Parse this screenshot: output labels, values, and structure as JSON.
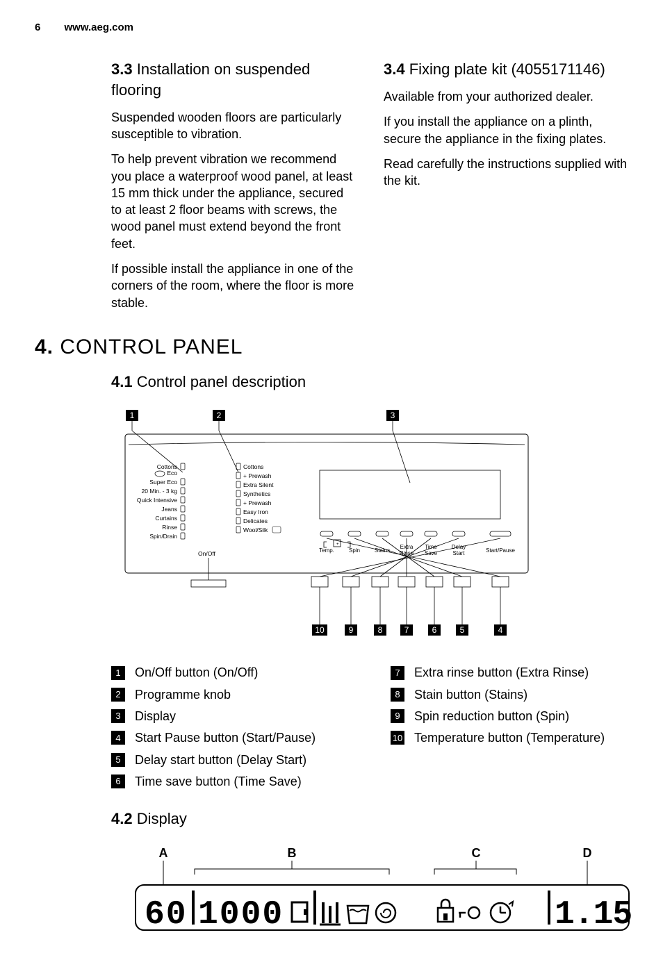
{
  "header": {
    "page_num": "6",
    "site": "www.aeg.com"
  },
  "s33": {
    "heading_num": "3.3",
    "heading_text": "Installation on suspended flooring",
    "p1": "Suspended wooden floors are particularly susceptible to vibration.",
    "p2": "To help prevent vibration we recommend you place a waterproof wood panel, at least 15 mm thick under the appliance, secured to at least 2 floor beams with screws, the wood panel must extend beyond the front feet.",
    "p3": "If possible install the appliance in one of the corners of the room, where the floor is more stable."
  },
  "s34": {
    "heading_num": "3.4",
    "heading_text": "Fixing plate kit (4055171146)",
    "p1": "Available from your authorized dealer.",
    "p2": "If you install the appliance on a plinth, secure the appliance in the fixing plates.",
    "p3": "Read carefully the instructions supplied with the kit."
  },
  "s4": {
    "num": "4.",
    "title": "CONTROL PANEL"
  },
  "s41": {
    "num": "4.1",
    "title": "Control panel description"
  },
  "panel": {
    "left_labels": [
      "Cottons",
      "Eco",
      "Super Eco",
      "20 Min. - 3 kg",
      "Quick Intensive",
      "Jeans",
      "Curtains",
      "Rinse",
      "Spin/Drain"
    ],
    "right_labels": [
      "Cottons",
      "+ Prewash",
      "Extra Silent",
      "Synthetics",
      "+ Prewash",
      "Easy Iron",
      "Delicates",
      "Wool/Silk"
    ],
    "onoff": "On/Off",
    "buttons": [
      "Temp.",
      "Spin",
      "Stains",
      "Extra Rinse",
      "Time Save",
      "Delay Start",
      "Start/Pause"
    ]
  },
  "callouts_top": [
    "1",
    "2",
    "3"
  ],
  "callouts_bottom": [
    "10",
    "9",
    "8",
    "7",
    "6",
    "5",
    "4"
  ],
  "legend_left": [
    {
      "n": "1",
      "t": "On/Off button (On/Off)"
    },
    {
      "n": "2",
      "t": "Programme knob"
    },
    {
      "n": "3",
      "t": "Display"
    },
    {
      "n": "4",
      "t": "Start Pause button (Start/Pause)"
    },
    {
      "n": "5",
      "t": "Delay start button (Delay Start)"
    },
    {
      "n": "6",
      "t": "Time save button (Time Save)"
    }
  ],
  "legend_right": [
    {
      "n": "7",
      "t": "Extra rinse button (Extra Rinse)"
    },
    {
      "n": "8",
      "t": "Stain button (Stains)"
    },
    {
      "n": "9",
      "t": "Spin reduction button (Spin)"
    },
    {
      "n": "10",
      "t": "Temperature button (Temperature)"
    }
  ],
  "s42": {
    "num": "4.2",
    "title": "Display"
  },
  "display": {
    "labels": [
      "A",
      "B",
      "C",
      "D"
    ],
    "left_seg": "60",
    "mid_seg": "1000",
    "right_seg": "1.15"
  }
}
